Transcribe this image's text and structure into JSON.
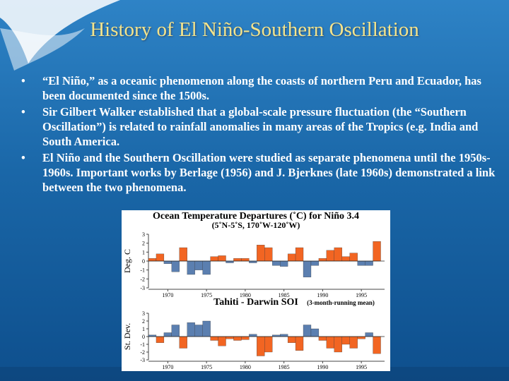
{
  "slide": {
    "title": "History of El Niño-Southern Oscillation",
    "bullets": [
      "“El Niño,” as a oceanic phenomenon along the coasts of northern Peru and Ecuador, has been documented since the 1500s.",
      "Sir Gilbert Walker established that a global-scale pressure fluctuation (the “Southern Oscillation”) is related to rainfall anomalies in many areas of the Tropics (e.g. India and South America.",
      "El Niño and the Southern Oscillation were studied as separate phenomena until the 1950s-1960s.  Important works by Berlage (1956) and J. Bjerknes (late 1960s)  demonstrated a link between the two phenomena."
    ]
  },
  "chart_data": [
    {
      "type": "area",
      "title": "Ocean Temperature Departures (˚C) for Niño 3.4",
      "subtitle": "(5˚N-5˚S, 170˚W-120˚W)",
      "ylabel": "Deg. C",
      "x": [
        1968,
        1969,
        1970,
        1971,
        1972,
        1973,
        1974,
        1975,
        1976,
        1977,
        1978,
        1979,
        1980,
        1981,
        1982,
        1983,
        1984,
        1985,
        1986,
        1987,
        1988,
        1989,
        1990,
        1991,
        1992,
        1993,
        1994,
        1995,
        1996,
        1997
      ],
      "values": [
        0.3,
        0.8,
        -0.3,
        -1.2,
        1.5,
        -1.5,
        -1.0,
        -1.5,
        0.5,
        0.6,
        -0.2,
        0.3,
        0.3,
        -0.2,
        1.8,
        1.5,
        -0.5,
        -0.6,
        0.8,
        1.5,
        -1.8,
        -0.5,
        0.3,
        1.2,
        1.5,
        0.5,
        0.9,
        -0.5,
        -0.5,
        2.2
      ],
      "xlim": [
        1967.5,
        1998
      ],
      "xticks": [
        1970,
        1975,
        1980,
        1985,
        1990,
        1995
      ],
      "ylim": [
        -3,
        3
      ],
      "yticks": [
        3,
        2,
        1,
        0,
        -1,
        -2,
        -3
      ],
      "positive_color": "#f26522",
      "negative_color": "#5b7fb0"
    },
    {
      "type": "area",
      "title": "Tahiti - Darwin SOI",
      "subtitle": "(3-month-running mean)",
      "ylabel": "St. Dev.",
      "x": [
        1968,
        1969,
        1970,
        1971,
        1972,
        1973,
        1974,
        1975,
        1976,
        1977,
        1978,
        1979,
        1980,
        1981,
        1982,
        1983,
        1984,
        1985,
        1986,
        1987,
        1988,
        1989,
        1990,
        1991,
        1992,
        1993,
        1994,
        1995,
        1996,
        1997
      ],
      "values": [
        0.2,
        -0.8,
        0.5,
        1.5,
        -1.5,
        1.8,
        1.5,
        2.0,
        -0.5,
        -1.2,
        -0.3,
        -0.5,
        -0.4,
        0.3,
        -2.5,
        -2.0,
        0.2,
        0.3,
        -0.8,
        -1.8,
        1.5,
        1.0,
        -0.5,
        -1.5,
        -2.0,
        -1.0,
        -1.5,
        -0.3,
        0.5,
        -2.2
      ],
      "xlim": [
        1967.5,
        1998
      ],
      "xticks": [
        1970,
        1975,
        1980,
        1985,
        1990,
        1995
      ],
      "ylim": [
        -3,
        3
      ],
      "yticks": [
        3,
        2,
        1,
        0,
        -1,
        -2,
        -3
      ],
      "positive_color": "#5b7fb0",
      "negative_color": "#f26522"
    }
  ]
}
